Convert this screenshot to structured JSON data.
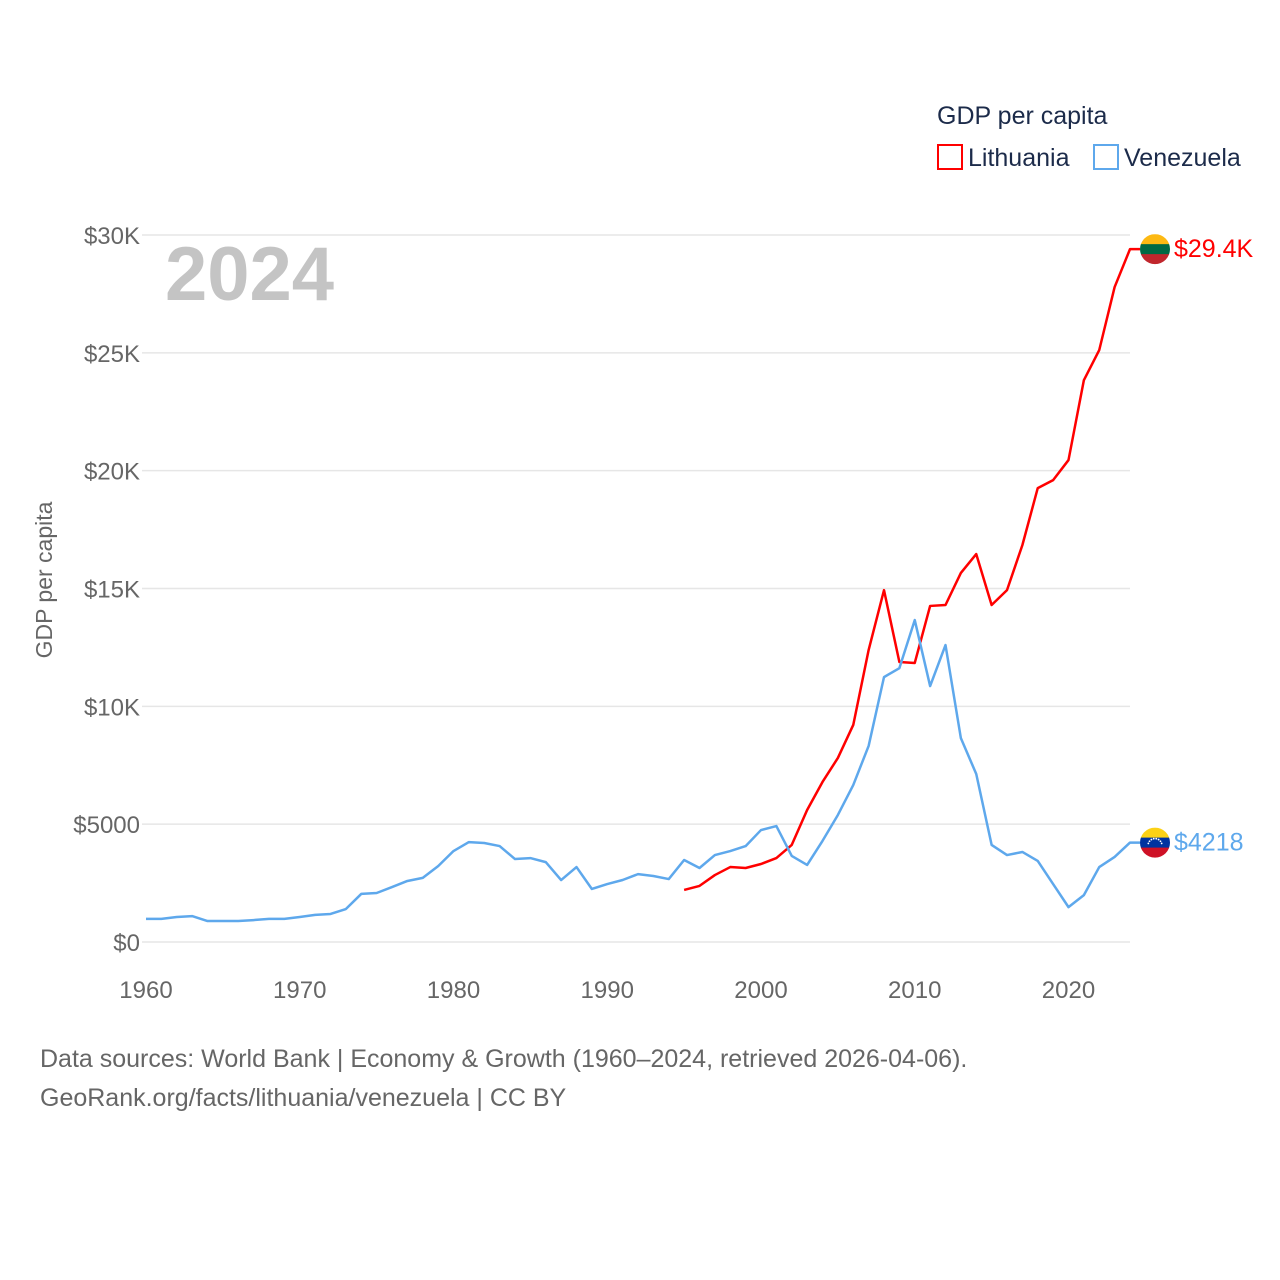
{
  "chart_data": {
    "type": "line",
    "title": "GDP per capita",
    "year_label": "2024",
    "ylabel": "GDP per capita",
    "xlabel": "",
    "xlim": [
      1960,
      2024
    ],
    "ylim": [
      0,
      30000
    ],
    "x_ticks": [
      1960,
      1970,
      1980,
      1990,
      2000,
      2010,
      2020
    ],
    "y_ticks": [
      0,
      5000,
      10000,
      15000,
      20000,
      25000,
      30000
    ],
    "y_tick_labels": [
      "$0",
      "$5000",
      "$10K",
      "$15K",
      "$20K",
      "$25K",
      "$30K"
    ],
    "grid": true,
    "legend_position": "top-right",
    "series": [
      {
        "name": "Lithuania",
        "color": "#ff0000",
        "end_label": "$29.4K",
        "start_year": 1995,
        "values": [
          2210,
          2380,
          2840,
          3180,
          3140,
          3310,
          3560,
          4120,
          5600,
          6790,
          7810,
          9210,
          12390,
          14930,
          11880,
          11840,
          14260,
          14300,
          15660,
          16460,
          14300,
          14930,
          16840,
          19260,
          19600,
          20450,
          23840,
          25120,
          27790,
          29400
        ]
      },
      {
        "name": "Venezuela",
        "color": "#5ea8ec",
        "end_label": "$4218",
        "start_year": 1960,
        "values": [
          980,
          980,
          1060,
          1100,
          890,
          890,
          890,
          930,
          980,
          980,
          1060,
          1150,
          1190,
          1400,
          2040,
          2080,
          2330,
          2590,
          2720,
          3220,
          3860,
          4240,
          4200,
          4070,
          3520,
          3560,
          3390,
          2630,
          3180,
          2250,
          2460,
          2630,
          2880,
          2800,
          2670,
          3480,
          3140,
          3690,
          3860,
          4070,
          4750,
          4920,
          3650,
          3270,
          4290,
          5390,
          6660,
          8320,
          11240,
          11620,
          13660,
          10860,
          12600,
          8650,
          7130,
          4120,
          3690,
          3820,
          3440,
          2460,
          1480,
          1990,
          3180,
          3610,
          4218
        ]
      }
    ]
  },
  "footer": {
    "line1": "Data sources: World Bank | Economy & Growth (1960–2024, retrieved 2026-04-06).",
    "line2": "GeoRank.org/facts/lithuania/venezuela | CC BY"
  }
}
